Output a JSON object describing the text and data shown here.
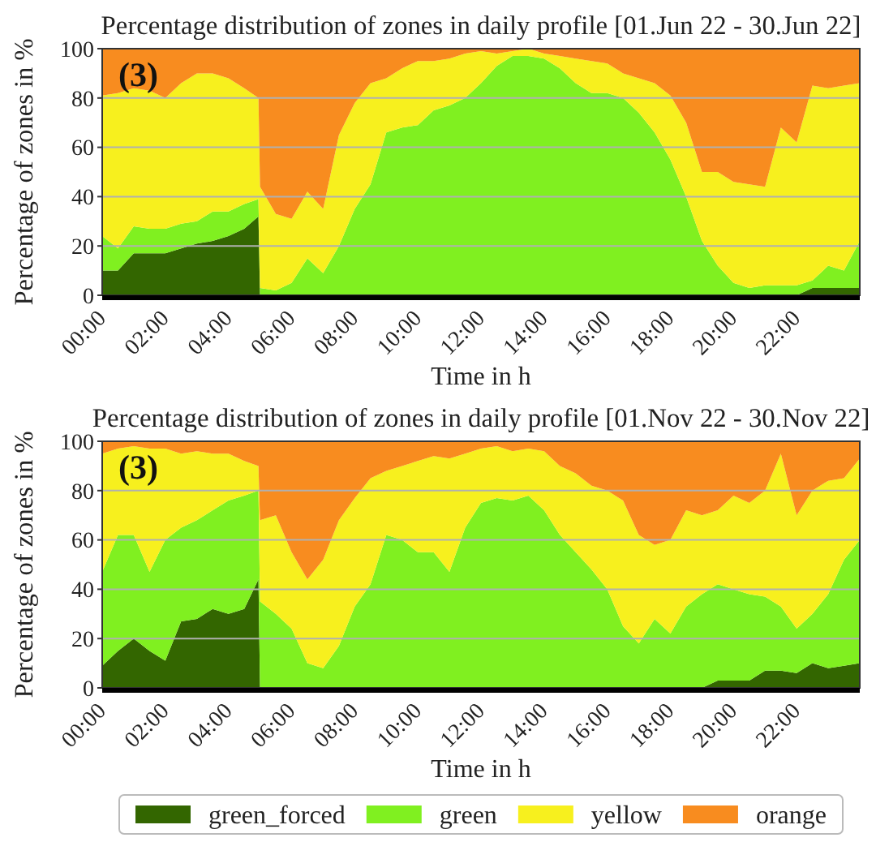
{
  "chart_data": [
    {
      "type": "area",
      "stacked": true,
      "title": "Percentage distribution of zones in daily profile [01.Jun 22 - 30.Jun 22]",
      "xlabel": "Time in h",
      "ylabel": "Percentage of zones in %",
      "annotations": [
        "(3)"
      ],
      "grid": "y",
      "xlim": [
        0,
        24
      ],
      "xticks": [
        {
          "value": 0,
          "label": "00:00"
        },
        {
          "value": 2,
          "label": "02:00"
        },
        {
          "value": 4,
          "label": "04:00"
        },
        {
          "value": 6,
          "label": "06:00"
        },
        {
          "value": 8,
          "label": "08:00"
        },
        {
          "value": 10,
          "label": "10:00"
        },
        {
          "value": 12,
          "label": "12:00"
        },
        {
          "value": 14,
          "label": "14:00"
        },
        {
          "value": 16,
          "label": "16:00"
        },
        {
          "value": 18,
          "label": "18:00"
        },
        {
          "value": 20,
          "label": "20:00"
        },
        {
          "value": 22,
          "label": "22:00"
        }
      ],
      "ylim": [
        0,
        100
      ],
      "yticks": [
        0,
        20,
        40,
        60,
        80,
        100
      ],
      "x": [
        0,
        0.5,
        1,
        1.5,
        2,
        2.5,
        3,
        3.5,
        4,
        4.5,
        4.95,
        5,
        5.5,
        6,
        6.5,
        7,
        7.5,
        8,
        8.5,
        9,
        9.5,
        10,
        10.5,
        11,
        11.5,
        12,
        12.5,
        13,
        13.5,
        14,
        14.5,
        15,
        15.5,
        16,
        16.5,
        17,
        17.5,
        18,
        18.5,
        19,
        19.5,
        20,
        20.5,
        21,
        21.5,
        22,
        22.5,
        23,
        23.5,
        24
      ],
      "series": [
        {
          "color": "#336600",
          "values": [
            10,
            10,
            17,
            17,
            17,
            19,
            21,
            22,
            24,
            27,
            32,
            0,
            0,
            0,
            0,
            0,
            0,
            0,
            0,
            0,
            0,
            0,
            0,
            0,
            0,
            0,
            0,
            0,
            0,
            0,
            0,
            0,
            0,
            0,
            0,
            0,
            0,
            0,
            0,
            0,
            0,
            0,
            0,
            0,
            0,
            0,
            3,
            3,
            3,
            3
          ]
        },
        {
          "color": "#80f020",
          "values": [
            14,
            9,
            11,
            10,
            10,
            10,
            9,
            12,
            10,
            10,
            7,
            3,
            2,
            5,
            15,
            9,
            20,
            35,
            45,
            66,
            68,
            69,
            75,
            77,
            80,
            86,
            93,
            97,
            97,
            96,
            92,
            86,
            82,
            82,
            80,
            74,
            66,
            55,
            40,
            22,
            12,
            5,
            3,
            4,
            4,
            4,
            3,
            9,
            7,
            19
          ]
        },
        {
          "color": "#f7f01e",
          "values": [
            57,
            63,
            56,
            56,
            53,
            57,
            60,
            56,
            54,
            47,
            41,
            41,
            31,
            26,
            27,
            26,
            45,
            43,
            41,
            22,
            24,
            26,
            20,
            19,
            18,
            13,
            5,
            2,
            3,
            2,
            5,
            10,
            13,
            12,
            10,
            14,
            20,
            26,
            30,
            28,
            38,
            41,
            42,
            40,
            64,
            58,
            79,
            72,
            75,
            64
          ]
        },
        {
          "color": "#f88c1f",
          "values": [
            19,
            18,
            16,
            17,
            20,
            14,
            10,
            10,
            12,
            16,
            20,
            56,
            67,
            69,
            58,
            65,
            35,
            22,
            14,
            12,
            8,
            5,
            5,
            4,
            2,
            1,
            2,
            1,
            0,
            2,
            3,
            4,
            5,
            6,
            10,
            12,
            14,
            19,
            30,
            50,
            50,
            54,
            55,
            56,
            32,
            38,
            15,
            16,
            15,
            14
          ]
        }
      ]
    },
    {
      "type": "area",
      "stacked": true,
      "title": "Percentage distribution of zones in daily profile [01.Nov 22 - 30.Nov 22]",
      "xlabel": "Time in h",
      "ylabel": "Percentage of zones in %",
      "annotations": [
        "(3)"
      ],
      "grid": "y",
      "legend": "bottom",
      "xlim": [
        0,
        24
      ],
      "xticks": [
        {
          "value": 0,
          "label": "00:00"
        },
        {
          "value": 2,
          "label": "02:00"
        },
        {
          "value": 4,
          "label": "04:00"
        },
        {
          "value": 6,
          "label": "06:00"
        },
        {
          "value": 8,
          "label": "08:00"
        },
        {
          "value": 10,
          "label": "10:00"
        },
        {
          "value": 12,
          "label": "12:00"
        },
        {
          "value": 14,
          "label": "14:00"
        },
        {
          "value": 16,
          "label": "16:00"
        },
        {
          "value": 18,
          "label": "18:00"
        },
        {
          "value": 20,
          "label": "20:00"
        },
        {
          "value": 22,
          "label": "22:00"
        }
      ],
      "ylim": [
        0,
        100
      ],
      "yticks": [
        0,
        20,
        40,
        60,
        80,
        100
      ],
      "x": [
        0,
        0.5,
        1,
        1.5,
        2,
        2.5,
        3,
        3.5,
        4,
        4.5,
        4.95,
        5,
        5.5,
        6,
        6.5,
        7,
        7.5,
        8,
        8.5,
        9,
        9.5,
        10,
        10.5,
        11,
        11.5,
        12,
        12.5,
        13,
        13.5,
        14,
        14.5,
        15,
        15.5,
        16,
        16.5,
        17,
        17.5,
        18,
        18.5,
        19,
        19.5,
        20,
        20.5,
        21,
        21.5,
        22,
        22.5,
        23,
        23.5,
        24
      ],
      "series": [
        {
          "name": "green_forced",
          "color": "#336600",
          "values": [
            9,
            15,
            20,
            15,
            11,
            27,
            28,
            32,
            30,
            32,
            44,
            0,
            0,
            0,
            0,
            0,
            0,
            0,
            0,
            0,
            0,
            0,
            0,
            0,
            0,
            0,
            0,
            0,
            0,
            0,
            0,
            0,
            0,
            0,
            0,
            0,
            0,
            0,
            0,
            0,
            3,
            3,
            3,
            7,
            7,
            6,
            10,
            8,
            9,
            10
          ]
        },
        {
          "name": "green",
          "color": "#80f020",
          "values": [
            38,
            47,
            42,
            32,
            49,
            38,
            40,
            40,
            46,
            46,
            36,
            35,
            30,
            24,
            10,
            8,
            17,
            33,
            42,
            62,
            60,
            55,
            55,
            47,
            65,
            75,
            77,
            76,
            78,
            72,
            62,
            55,
            48,
            40,
            25,
            18,
            28,
            22,
            33,
            38,
            39,
            37,
            35,
            30,
            26,
            18,
            20,
            30,
            43,
            50
          ]
        },
        {
          "name": "yellow",
          "color": "#f7f01e",
          "values": [
            48,
            35,
            36,
            50,
            37,
            30,
            28,
            23,
            19,
            14,
            10,
            33,
            40,
            31,
            34,
            44,
            51,
            44,
            43,
            26,
            30,
            37,
            39,
            46,
            30,
            22,
            21,
            20,
            19,
            24,
            28,
            32,
            34,
            40,
            51,
            44,
            30,
            38,
            39,
            32,
            30,
            38,
            37,
            43,
            62,
            46,
            50,
            46,
            33,
            33
          ]
        },
        {
          "name": "orange",
          "color": "#f88c1f",
          "values": [
            5,
            3,
            2,
            3,
            3,
            5,
            4,
            5,
            5,
            8,
            10,
            32,
            30,
            45,
            56,
            48,
            32,
            23,
            15,
            12,
            10,
            8,
            6,
            7,
            5,
            3,
            2,
            4,
            3,
            4,
            10,
            13,
            18,
            20,
            24,
            38,
            42,
            40,
            28,
            30,
            28,
            22,
            25,
            20,
            5,
            30,
            20,
            16,
            15,
            7
          ]
        }
      ]
    }
  ]
}
